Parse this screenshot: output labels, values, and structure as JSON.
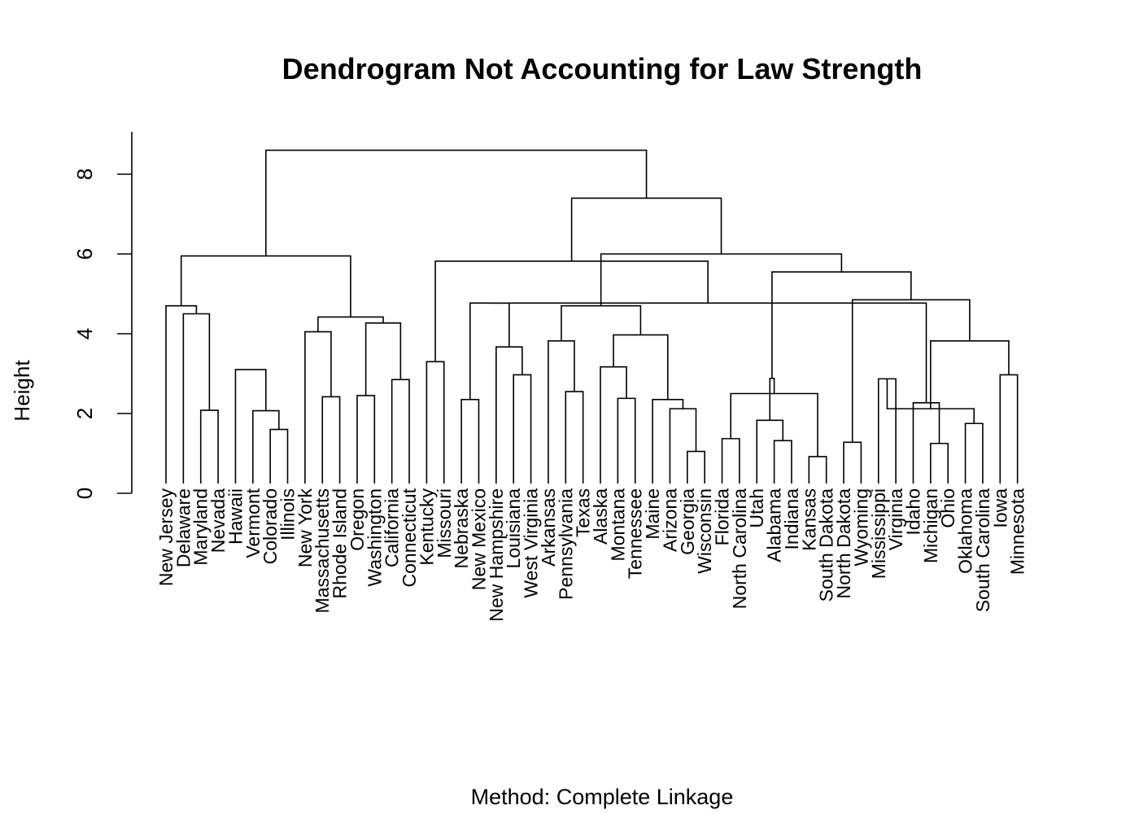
{
  "chart_data": {
    "type": "dendrogram",
    "title": "Dendrogram Not Accounting for Law Strength",
    "ylabel": "Height",
    "subtitle": "Method: Complete Linkage",
    "ylim": [
      0,
      9
    ],
    "yticks": [
      0,
      2,
      4,
      6,
      8
    ],
    "leaves": [
      "New Jersey",
      "Delaware",
      "Maryland",
      "Nevada",
      "Hawaii",
      "Vermont",
      "Colorado",
      "Illinois",
      "New York",
      "Massachusetts",
      "Rhode Island",
      "Oregon",
      "Washington",
      "California",
      "Connecticut",
      "Kentucky",
      "Missouri",
      "Nebraska",
      "New Mexico",
      "New Hampshire",
      "Louisiana",
      "West Virginia",
      "Arkansas",
      "Pennsylvania",
      "Texas",
      "Alaska",
      "Montana",
      "Tennessee",
      "Maine",
      "Arizona",
      "Georgia",
      "Wisconsin",
      "Florida",
      "North Carolina",
      "Utah",
      "Alabama",
      "Indiana",
      "Kansas",
      "South Dakota",
      "North Dakota",
      "Wyoming",
      "Mississippi",
      "Virginia",
      "Idaho",
      "Michigan",
      "Ohio",
      "Oklahoma",
      "South Carolina",
      "Iowa",
      "Minnesota"
    ],
    "merges": [
      {
        "a": 2,
        "b": 3,
        "height": 2.08
      },
      {
        "a": 6,
        "b": 7,
        "height": 1.6
      },
      {
        "a": 9,
        "b": 10,
        "height": 2.42
      },
      {
        "a": 11,
        "b": 12,
        "height": 2.45
      },
      {
        "a": 13,
        "b": 14,
        "height": 2.85
      },
      {
        "a": 15,
        "b": 16,
        "height": 3.3
      },
      {
        "a": 17,
        "b": 18,
        "height": 2.35
      },
      {
        "a": 20,
        "b": 21,
        "height": 2.97
      },
      {
        "a": 23,
        "b": 24,
        "height": 2.55
      },
      {
        "a": 26,
        "b": 27,
        "height": 2.38
      },
      {
        "a": 30,
        "b": 31,
        "height": 1.05
      },
      {
        "a": 32,
        "b": 33,
        "height": 1.37
      },
      {
        "a": 35,
        "b": 36,
        "height": 1.32
      },
      {
        "a": 37,
        "b": 38,
        "height": 0.92
      },
      {
        "a": 39,
        "b": 40,
        "height": 1.28
      },
      {
        "a": 41,
        "b": 42,
        "height": 2.87
      },
      {
        "a": 44,
        "b": 45,
        "height": 1.25
      },
      {
        "a": 46,
        "b": 47,
        "height": 1.75
      },
      {
        "a": 48,
        "b": 49,
        "height": 2.97
      },
      {
        "a": 1,
        "b": 50,
        "height": 4.5
      },
      {
        "a": 5,
        "b": 51,
        "height": 2.07
      },
      {
        "a": 8,
        "b": 52,
        "height": 4.05
      },
      {
        "a": 53,
        "b": 54,
        "height": 4.27
      },
      {
        "a": 19,
        "b": 57,
        "height": 3.67
      },
      {
        "a": 22,
        "b": 58,
        "height": 3.82
      },
      {
        "a": 25,
        "b": 59,
        "height": 3.17
      },
      {
        "a": 29,
        "b": 60,
        "height": 2.12
      },
      {
        "a": 34,
        "b": 62,
        "height": 1.83
      },
      {
        "a": 43,
        "b": 66,
        "height": 2.27
      },
      {
        "a": 0,
        "b": 69,
        "height": 4.7
      },
      {
        "a": 4,
        "b": 70,
        "height": 3.1
      },
      {
        "a": 71,
        "b": 72,
        "height": 4.42
      },
      {
        "a": 56,
        "b": 73,
        "height": 4.77
      },
      {
        "a": 28,
        "b": 76,
        "height": 2.35
      },
      {
        "a": 61,
        "b": 63,
        "height": 2.5
      },
      {
        "a": 65,
        "b": 67,
        "height": 2.12
      },
      {
        "a": 78,
        "b": 82,
        "height": 4.77
      },
      {
        "a": 75,
        "b": 83,
        "height": 3.97
      },
      {
        "a": 77,
        "b": 84,
        "height": 2.88
      },
      {
        "a": 85,
        "b": 68,
        "height": 3.82
      },
      {
        "a": 55,
        "b": 86,
        "height": 5.82
      },
      {
        "a": 74,
        "b": 87,
        "height": 4.7
      },
      {
        "a": 64,
        "b": 89,
        "height": 4.85
      },
      {
        "a": 79,
        "b": 81,
        "height": 5.95
      },
      {
        "a": 88,
        "b": 92,
        "height": 5.55
      },
      {
        "a": 91,
        "b": 94,
        "height": 6.0
      },
      {
        "a": 90,
        "b": 95,
        "height": 7.4
      },
      {
        "a": 93,
        "b": 96,
        "height": 8.6
      }
    ]
  }
}
